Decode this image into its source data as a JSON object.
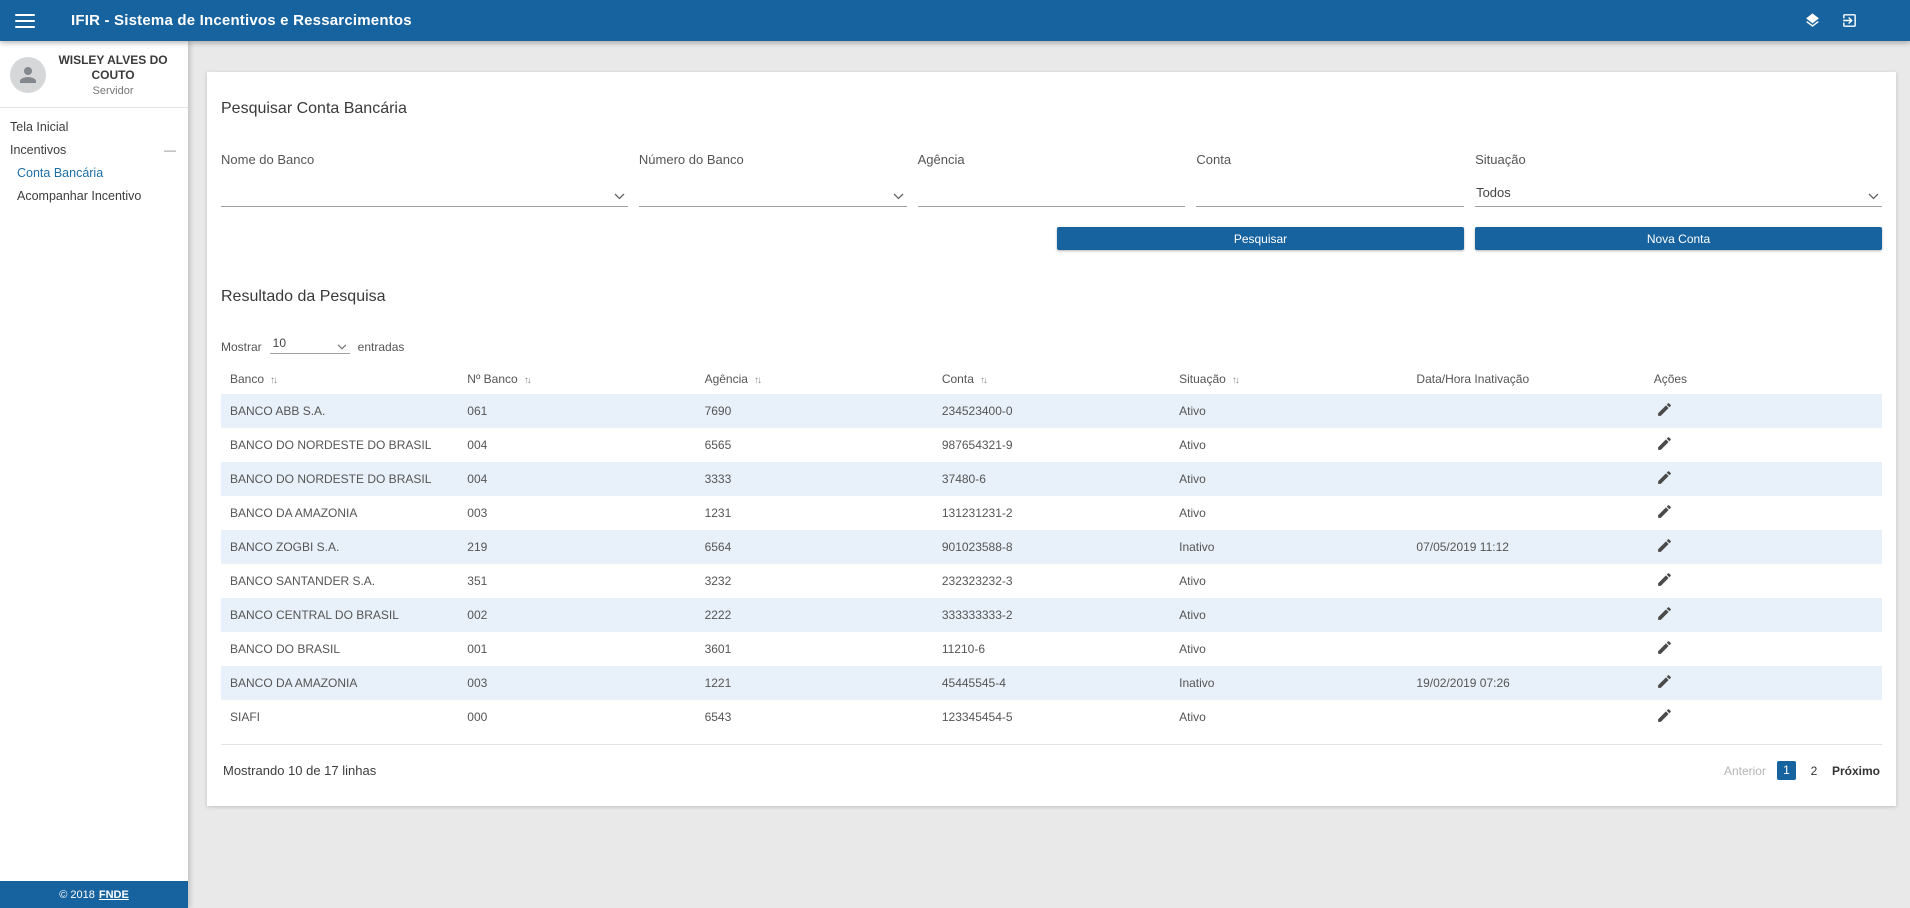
{
  "header": {
    "title": "IFIR - Sistema de Incentivos e Ressarcimentos"
  },
  "sidebar": {
    "user": {
      "name": "WISLEY ALVES DO COUTO",
      "role": "Servidor"
    },
    "items": [
      {
        "label": "Tela Inicial"
      },
      {
        "label": "Incentivos"
      },
      {
        "label": "Conta Bancária"
      },
      {
        "label": "Acompanhar Incentivo"
      }
    ],
    "footer_text": "© 2018",
    "footer_link": "FNDE"
  },
  "search": {
    "title": "Pesquisar Conta Bancária",
    "fields": [
      {
        "label": "Nome do Banco",
        "type": "select",
        "value": ""
      },
      {
        "label": "Número do Banco",
        "type": "select",
        "value": ""
      },
      {
        "label": "Agência",
        "type": "text",
        "value": ""
      },
      {
        "label": "Conta",
        "type": "text",
        "value": ""
      },
      {
        "label": "Situação",
        "type": "select",
        "value": "Todos"
      }
    ],
    "buttons": {
      "search": "Pesquisar",
      "new": "Nova Conta"
    }
  },
  "results": {
    "title": "Resultado da Pesquisa",
    "show_label": "Mostrar",
    "show_value": "10",
    "entries_label": "entradas",
    "columns": [
      {
        "label": "Banco",
        "sortable": true
      },
      {
        "label": "Nº Banco",
        "sortable": true
      },
      {
        "label": "Agência",
        "sortable": true
      },
      {
        "label": "Conta",
        "sortable": true
      },
      {
        "label": "Situação",
        "sortable": true
      },
      {
        "label": "Data/Hora Inativação",
        "sortable": false
      },
      {
        "label": "Ações",
        "sortable": false
      }
    ],
    "rows": [
      [
        "BANCO ABB S.A.",
        "061",
        "7690",
        "234523400-0",
        "Ativo",
        ""
      ],
      [
        "BANCO DO NORDESTE DO BRASIL",
        "004",
        "6565",
        "987654321-9",
        "Ativo",
        ""
      ],
      [
        "BANCO DO NORDESTE DO BRASIL",
        "004",
        "3333",
        "37480-6",
        "Ativo",
        ""
      ],
      [
        "BANCO DA AMAZONIA",
        "003",
        "1231",
        "131231231-2",
        "Ativo",
        ""
      ],
      [
        "BANCO ZOGBI S.A.",
        "219",
        "6564",
        "901023588-8",
        "Inativo",
        "07/05/2019 11:12"
      ],
      [
        "BANCO SANTANDER S.A.",
        "351",
        "3232",
        "232323232-3",
        "Ativo",
        ""
      ],
      [
        "BANCO CENTRAL DO BRASIL",
        "002",
        "2222",
        "333333333-2",
        "Ativo",
        ""
      ],
      [
        "BANCO DO BRASIL",
        "001",
        "3601",
        "11210-6",
        "Ativo",
        ""
      ],
      [
        "BANCO DA AMAZONIA",
        "003",
        "1221",
        "45445545-4",
        "Inativo",
        "19/02/2019 07:26"
      ],
      [
        "SIAFI",
        "000",
        "6543",
        "123345454-5",
        "Ativo",
        ""
      ]
    ],
    "summary": "Mostrando 10 de 17 linhas",
    "pagination": {
      "prev": "Anterior",
      "pages": [
        "1",
        "2"
      ],
      "active": "1",
      "next": "Próximo"
    }
  },
  "icons": {
    "collapse": "—",
    "sort": "↑↓",
    "hamburger": "menu-icon",
    "layers": "layers-icon",
    "logout": "logout-icon",
    "avatar": "user-avatar-icon",
    "edit": "edit-pencil-icon",
    "chevron": "chevron-down-icon"
  },
  "colors": {
    "primary": "#17639f",
    "row_alt": "#e8f1fa",
    "active_link": "#1d6fa5",
    "background": "#e9e9e9",
    "text": "#555555"
  }
}
